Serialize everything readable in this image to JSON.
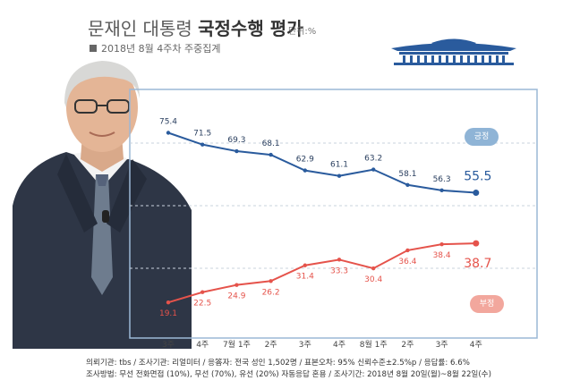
{
  "title": {
    "prefix": "문재인 대통령 ",
    "emphasis": "국정수행 평가"
  },
  "unit_label": "단위:%",
  "subtitle": "2018년 8월 4주차 주중집계",
  "icons": {
    "header": "blue-house-icon",
    "portrait": "president-portrait-photo"
  },
  "colors": {
    "positive": "#2a5b9d",
    "negative": "#e5534b",
    "grid_frame": "#9bb8d6",
    "positive_pill": "#8fb4d6",
    "negative_pill": "#f2a79d"
  },
  "chart_data": {
    "type": "line",
    "categories": [
      "3주",
      "4주",
      "7월 1주",
      "2주",
      "3주",
      "4주",
      "8월 1주",
      "2주",
      "3주",
      "4주"
    ],
    "series": [
      {
        "name": "긍정",
        "values": [
          75.4,
          71.5,
          69.3,
          68.1,
          62.9,
          61.1,
          63.2,
          58.1,
          56.3,
          55.5
        ]
      },
      {
        "name": "부정",
        "values": [
          19.1,
          22.5,
          24.9,
          26.2,
          31.4,
          33.3,
          30.4,
          36.4,
          38.4,
          38.7
        ]
      }
    ],
    "ylim": [
      15,
      80
    ],
    "grid": true,
    "legend": "right"
  },
  "footer": {
    "line1": "의뢰기관: tbs / 조사기관: 리얼미터 / 응答자: 전국 성인 1,502명 / 표본오차: 95% 신뢰수준±2.5%p / 응답률: 6.6%",
    "line2": "조사방법: 무선 전화면접 (10%), 무선 (70%), 유선 (20%) 자동응답 혼용 / 조사기간: 2018년 8월 20일(월)~8월 22일(수)"
  }
}
